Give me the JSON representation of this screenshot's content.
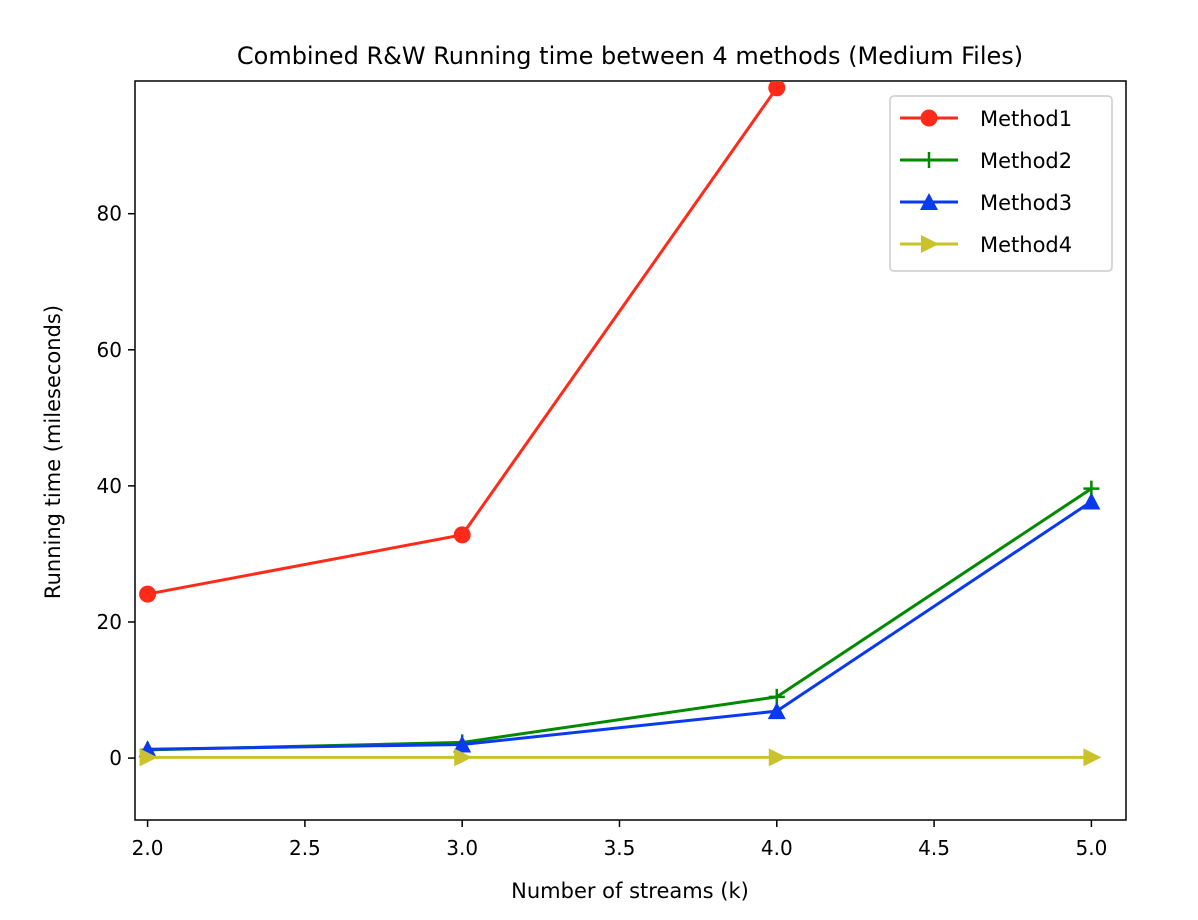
{
  "chart_data": {
    "type": "line",
    "title": "Combined R&W Running time between 4 methods (Medium Files)",
    "xlabel": "Number of streams (k)",
    "ylabel": "Running time (mileseconds)",
    "x": [
      2.0,
      3.0,
      4.0,
      5.0
    ],
    "xlim": [
      1.96,
      5.11
    ],
    "ylim": [
      -9.1,
      99.5
    ],
    "xticks": [
      "2.0",
      "2.5",
      "3.0",
      "3.5",
      "4.0",
      "4.5",
      "5.0"
    ],
    "yticks": [
      "0",
      "20",
      "40",
      "60",
      "80"
    ],
    "grid": false,
    "legend_position": "top-right",
    "series": [
      {
        "name": "Method1",
        "color": "#ff2a1a",
        "marker": "circle",
        "values": [
          24.1,
          32.8,
          98.5,
          null
        ]
      },
      {
        "name": "Method2",
        "color": "#008a00",
        "marker": "plus",
        "values": [
          1.2,
          2.3,
          9.0,
          39.6
        ]
      },
      {
        "name": "Method3",
        "color": "#0a3af0",
        "marker": "triangle-up",
        "values": [
          1.3,
          2.0,
          6.9,
          37.7
        ]
      },
      {
        "name": "Method4",
        "color": "#c9c22a",
        "marker": "triangle-right",
        "values": [
          0.1,
          0.1,
          0.1,
          0.1
        ]
      }
    ]
  }
}
